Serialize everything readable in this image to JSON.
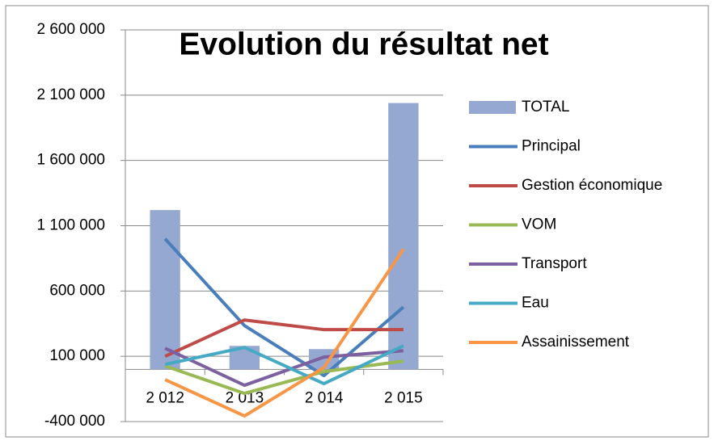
{
  "chart_data": {
    "type": "bar-line",
    "title": "Evolution du résultat net",
    "categories": [
      "2 012",
      "2 013",
      "2 014",
      "2 015"
    ],
    "series": [
      {
        "name": "TOTAL",
        "type": "bar",
        "color": "#95a8d2",
        "values": [
          1220000,
          180000,
          155000,
          2040000
        ]
      },
      {
        "name": "Principal",
        "type": "line",
        "color": "#4a7ebb",
        "values": [
          1000000,
          335000,
          -48000,
          477000
        ]
      },
      {
        "name": "Gestion économique",
        "type": "line",
        "color": "#be4b48",
        "values": [
          100000,
          378000,
          304000,
          304000
        ]
      },
      {
        "name": "VOM",
        "type": "line",
        "color": "#98b954",
        "values": [
          26000,
          -184000,
          -17000,
          63000
        ]
      },
      {
        "name": "Transport",
        "type": "line",
        "color": "#7d60a0",
        "values": [
          162000,
          -122000,
          94000,
          143000
        ]
      },
      {
        "name": "Eau",
        "type": "line",
        "color": "#46aac5",
        "values": [
          38000,
          168000,
          -110000,
          180000
        ]
      },
      {
        "name": "Assainissement",
        "type": "line",
        "color": "#f79646",
        "values": [
          -79000,
          -357000,
          14000,
          921000
        ]
      }
    ],
    "ylim": [
      -400000,
      2600000
    ],
    "yticks": [
      {
        "value": -400000,
        "label": "-400 000"
      },
      {
        "value": 100000,
        "label": "100 000"
      },
      {
        "value": 600000,
        "label": "600 000"
      },
      {
        "value": 1100000,
        "label": "1 100 000"
      },
      {
        "value": 1600000,
        "label": "1 600 000"
      },
      {
        "value": 2100000,
        "label": "2 100 000"
      },
      {
        "value": 2600000,
        "label": "2 600 000"
      }
    ],
    "grid": true,
    "legend": "right"
  }
}
